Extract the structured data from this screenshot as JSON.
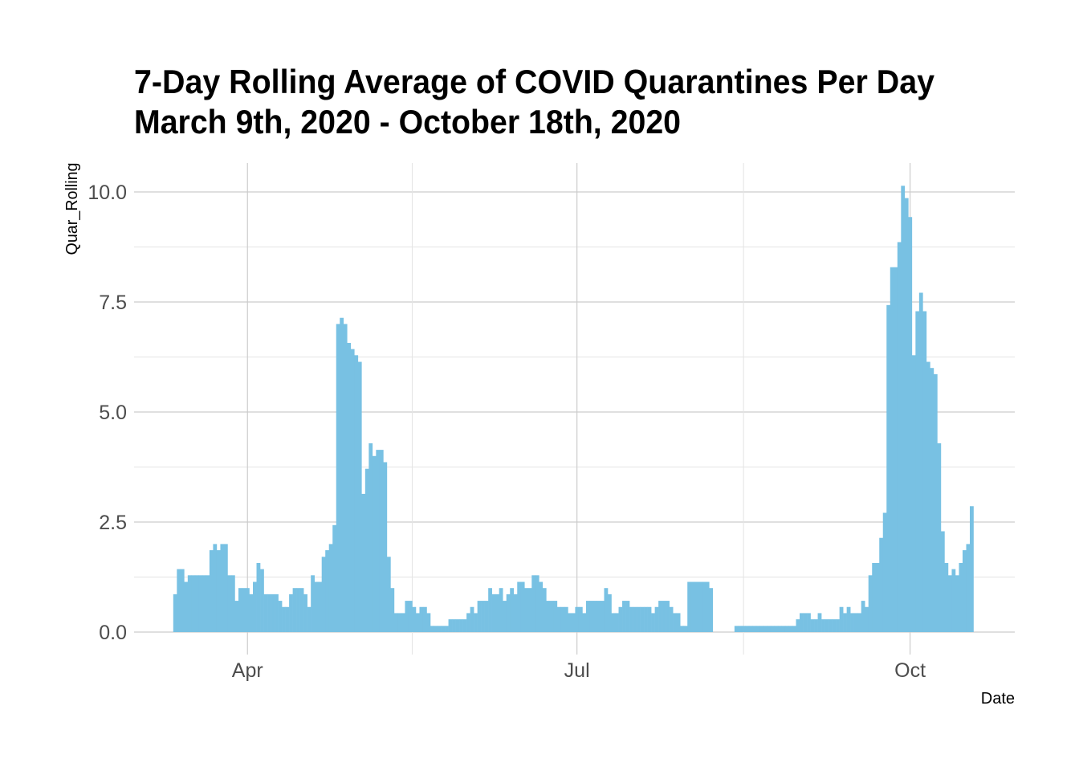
{
  "chart_data": {
    "type": "bar",
    "title": "7-Day Rolling Average of COVID Quarantines Per Day",
    "subtitle": "March 9th, 2020 - October 18th, 2020",
    "xlabel": "Date",
    "ylabel": "Quar_Rolling",
    "ylim": [
      0,
      10.5
    ],
    "yticks": [
      "0.0",
      "2.5",
      "5.0",
      "7.5",
      "10.0"
    ],
    "xticks": [
      {
        "label": "Apr",
        "date": "2020-04-01"
      },
      {
        "label": "Jul",
        "date": "2020-07-01"
      },
      {
        "label": "Oct",
        "date": "2020-10-01"
      }
    ],
    "grid": true,
    "bar_color": "#78C1E3",
    "x": [
      "2020-03-12",
      "2020-03-13",
      "2020-03-14",
      "2020-03-15",
      "2020-03-16",
      "2020-03-17",
      "2020-03-18",
      "2020-03-19",
      "2020-03-20",
      "2020-03-21",
      "2020-03-22",
      "2020-03-23",
      "2020-03-24",
      "2020-03-25",
      "2020-03-26",
      "2020-03-27",
      "2020-03-28",
      "2020-03-29",
      "2020-03-30",
      "2020-03-31",
      "2020-04-01",
      "2020-04-02",
      "2020-04-03",
      "2020-04-04",
      "2020-04-05",
      "2020-04-06",
      "2020-04-07",
      "2020-04-08",
      "2020-04-09",
      "2020-04-10",
      "2020-04-11",
      "2020-04-12",
      "2020-04-13",
      "2020-04-14",
      "2020-04-15",
      "2020-04-16",
      "2020-04-17",
      "2020-04-18",
      "2020-04-19",
      "2020-04-20",
      "2020-04-21",
      "2020-04-22",
      "2020-04-23",
      "2020-04-24",
      "2020-04-25",
      "2020-04-26",
      "2020-04-27",
      "2020-04-28",
      "2020-04-29",
      "2020-04-30",
      "2020-05-01",
      "2020-05-02",
      "2020-05-03",
      "2020-05-04",
      "2020-05-05",
      "2020-05-06",
      "2020-05-07",
      "2020-05-08",
      "2020-05-09",
      "2020-05-10",
      "2020-05-11",
      "2020-05-12",
      "2020-05-13",
      "2020-05-14",
      "2020-05-15",
      "2020-05-16",
      "2020-05-17",
      "2020-05-18",
      "2020-05-19",
      "2020-05-20",
      "2020-05-21",
      "2020-05-22",
      "2020-05-23",
      "2020-05-24",
      "2020-05-25",
      "2020-05-26",
      "2020-05-27",
      "2020-05-28",
      "2020-05-29",
      "2020-05-30",
      "2020-05-31",
      "2020-06-01",
      "2020-06-02",
      "2020-06-03",
      "2020-06-04",
      "2020-06-05",
      "2020-06-06",
      "2020-06-07",
      "2020-06-08",
      "2020-06-09",
      "2020-06-10",
      "2020-06-11",
      "2020-06-12",
      "2020-06-13",
      "2020-06-14",
      "2020-06-15",
      "2020-06-16",
      "2020-06-17",
      "2020-06-18",
      "2020-06-19",
      "2020-06-20",
      "2020-06-21",
      "2020-06-22",
      "2020-06-23",
      "2020-06-24",
      "2020-06-25",
      "2020-06-26",
      "2020-06-27",
      "2020-06-28",
      "2020-06-29",
      "2020-06-30",
      "2020-07-01",
      "2020-07-02",
      "2020-07-03",
      "2020-07-04",
      "2020-07-05",
      "2020-07-06",
      "2020-07-07",
      "2020-07-08",
      "2020-07-09",
      "2020-07-10",
      "2020-07-11",
      "2020-07-12",
      "2020-07-13",
      "2020-07-14",
      "2020-07-15",
      "2020-07-16",
      "2020-07-17",
      "2020-07-18",
      "2020-07-19",
      "2020-07-20",
      "2020-07-21",
      "2020-07-22",
      "2020-07-23",
      "2020-07-24",
      "2020-07-25",
      "2020-07-26",
      "2020-07-27",
      "2020-07-28",
      "2020-07-29",
      "2020-07-30",
      "2020-07-31",
      "2020-08-01",
      "2020-08-02",
      "2020-08-03",
      "2020-08-04",
      "2020-08-05",
      "2020-08-06",
      "2020-08-07",
      "2020-08-08",
      "2020-08-09",
      "2020-08-10",
      "2020-08-11",
      "2020-08-12",
      "2020-08-13",
      "2020-08-14",
      "2020-08-15",
      "2020-08-16",
      "2020-08-17",
      "2020-08-18",
      "2020-08-19",
      "2020-08-20",
      "2020-08-21",
      "2020-08-22",
      "2020-08-23",
      "2020-08-24",
      "2020-08-25",
      "2020-08-26",
      "2020-08-27",
      "2020-08-28",
      "2020-08-29",
      "2020-08-30",
      "2020-08-31",
      "2020-09-01",
      "2020-09-02",
      "2020-09-03",
      "2020-09-04",
      "2020-09-05",
      "2020-09-06",
      "2020-09-07",
      "2020-09-08",
      "2020-09-09",
      "2020-09-10",
      "2020-09-11",
      "2020-09-12",
      "2020-09-13",
      "2020-09-14",
      "2020-09-15",
      "2020-09-16",
      "2020-09-17",
      "2020-09-18",
      "2020-09-19",
      "2020-09-20",
      "2020-09-21",
      "2020-09-22",
      "2020-09-23",
      "2020-09-24",
      "2020-09-25",
      "2020-09-26",
      "2020-09-27",
      "2020-09-28",
      "2020-09-29",
      "2020-09-30",
      "2020-10-01",
      "2020-10-02",
      "2020-10-03",
      "2020-10-04",
      "2020-10-05",
      "2020-10-06",
      "2020-10-07",
      "2020-10-08",
      "2020-10-09",
      "2020-10-10",
      "2020-10-11",
      "2020-10-12",
      "2020-10-13",
      "2020-10-14",
      "2020-10-15",
      "2020-10-16",
      "2020-10-17",
      "2020-10-18"
    ],
    "values": [
      0.86,
      1.43,
      1.43,
      1.14,
      1.29,
      1.29,
      1.29,
      1.29,
      1.29,
      1.29,
      1.86,
      2,
      1.86,
      2,
      2,
      1.29,
      1.29,
      0.71,
      1,
      1,
      1,
      0.86,
      1.14,
      1.57,
      1.43,
      0.86,
      0.86,
      0.86,
      0.86,
      0.71,
      0.57,
      0.57,
      0.86,
      1,
      1,
      1,
      0.86,
      0.57,
      1.29,
      1.14,
      1.14,
      1.71,
      1.86,
      2,
      2.43,
      7,
      7.14,
      7,
      6.57,
      6.43,
      6.29,
      6.14,
      3.14,
      3.71,
      4.29,
      4,
      4.14,
      4.14,
      3.86,
      1.71,
      1,
      0.43,
      0.43,
      0.43,
      0.71,
      0.71,
      0.57,
      0.43,
      0.57,
      0.57,
      0.43,
      0.14,
      0.14,
      0.14,
      0.14,
      0.14,
      0.29,
      0.29,
      0.29,
      0.29,
      0.29,
      0.43,
      0.57,
      0.43,
      0.71,
      0.71,
      0.71,
      1,
      0.86,
      0.86,
      1,
      0.71,
      0.86,
      1,
      0.86,
      1.14,
      1.14,
      1,
      1,
      1.29,
      1.29,
      1.14,
      1,
      0.71,
      0.71,
      0.71,
      0.57,
      0.57,
      0.57,
      0.43,
      0.43,
      0.57,
      0.57,
      0.43,
      0.71,
      0.71,
      0.71,
      0.71,
      0.71,
      1,
      0.86,
      0.43,
      0.43,
      0.57,
      0.71,
      0.71,
      0.57,
      0.57,
      0.57,
      0.57,
      0.57,
      0.57,
      0.43,
      0.57,
      0.71,
      0.71,
      0.71,
      0.57,
      0.43,
      0.43,
      0.14,
      0.14,
      1.14,
      1.14,
      1.14,
      1.14,
      1.14,
      1.14,
      1,
      0,
      0,
      0,
      0,
      0,
      0,
      0.14,
      0.14,
      0.14,
      0.14,
      0.14,
      0.14,
      0.14,
      0.14,
      0.14,
      0.14,
      0.14,
      0.14,
      0.14,
      0.14,
      0.14,
      0.14,
      0.14,
      0.29,
      0.43,
      0.43,
      0.43,
      0.29,
      0.29,
      0.43,
      0.29,
      0.29,
      0.29,
      0.29,
      0.29,
      0.57,
      0.43,
      0.57,
      0.43,
      0.43,
      0.43,
      0.71,
      0.57,
      1.29,
      1.57,
      1.57,
      2.14,
      2.71,
      7.43,
      8.29,
      8.29,
      8.86,
      10.14,
      9.86,
      9.43,
      6.29,
      7.29,
      7.71,
      7.29,
      6.14,
      6,
      5.86,
      4.29,
      2.29,
      1.57,
      1.29,
      1.43,
      1.29,
      1.57,
      1.86,
      2,
      2.86
    ]
  }
}
